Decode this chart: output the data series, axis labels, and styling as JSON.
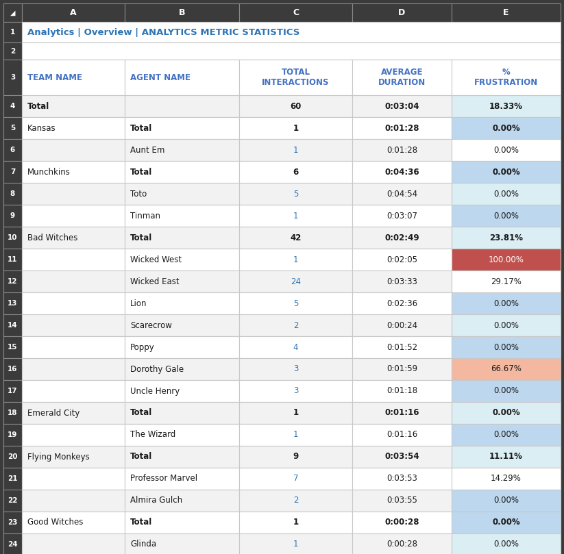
{
  "title": "Analytics | Overview | ANALYTICS METRIC STATISTICS",
  "title_color": "#2E75B6",
  "col_header_row": [
    "TEAM NAME",
    "AGENT NAME",
    "TOTAL\nINTERACTIONS",
    "AVERAGE\nDURATION",
    "%\nFRUSTRATION"
  ],
  "rows": [
    {
      "row_num": 4,
      "team": "Total",
      "agent": "",
      "interactions": "60",
      "duration": "0:03:04",
      "frustration": "18.33%",
      "bold_team": true,
      "bold_agent": false,
      "link_interactions": false,
      "bg_frustration": "#DAEEF3",
      "bg_row": "#F2F2F2"
    },
    {
      "row_num": 5,
      "team": "Kansas",
      "agent": "Total",
      "interactions": "1",
      "duration": "0:01:28",
      "frustration": "0.00%",
      "bold_team": false,
      "bold_agent": true,
      "link_interactions": false,
      "bg_frustration": "#BDD7EE",
      "bg_row": "#FFFFFF"
    },
    {
      "row_num": 6,
      "team": "",
      "agent": "Aunt Em",
      "interactions": "1",
      "duration": "0:01:28",
      "frustration": "0.00%",
      "bold_team": false,
      "bold_agent": false,
      "link_interactions": true,
      "bg_frustration": "#FFFFFF",
      "bg_row": "#F2F2F2"
    },
    {
      "row_num": 7,
      "team": "Munchkins",
      "agent": "Total",
      "interactions": "6",
      "duration": "0:04:36",
      "frustration": "0.00%",
      "bold_team": false,
      "bold_agent": true,
      "link_interactions": false,
      "bg_frustration": "#BDD7EE",
      "bg_row": "#FFFFFF"
    },
    {
      "row_num": 8,
      "team": "",
      "agent": "Toto",
      "interactions": "5",
      "duration": "0:04:54",
      "frustration": "0.00%",
      "bold_team": false,
      "bold_agent": false,
      "link_interactions": true,
      "bg_frustration": "#DAEEF3",
      "bg_row": "#F2F2F2"
    },
    {
      "row_num": 9,
      "team": "",
      "agent": "Tinman",
      "interactions": "1",
      "duration": "0:03:07",
      "frustration": "0.00%",
      "bold_team": false,
      "bold_agent": false,
      "link_interactions": true,
      "bg_frustration": "#BDD7EE",
      "bg_row": "#FFFFFF"
    },
    {
      "row_num": 10,
      "team": "Bad Witches",
      "agent": "Total",
      "interactions": "42",
      "duration": "0:02:49",
      "frustration": "23.81%",
      "bold_team": false,
      "bold_agent": true,
      "link_interactions": false,
      "bg_frustration": "#DAEEF3",
      "bg_row": "#F2F2F2"
    },
    {
      "row_num": 11,
      "team": "",
      "agent": "Wicked West",
      "interactions": "1",
      "duration": "0:02:05",
      "frustration": "100.00%",
      "bold_team": false,
      "bold_agent": false,
      "link_interactions": true,
      "bg_frustration": "#C0504D",
      "bg_row": "#FFFFFF"
    },
    {
      "row_num": 12,
      "team": "",
      "agent": "Wicked East",
      "interactions": "24",
      "duration": "0:03:33",
      "frustration": "29.17%",
      "bold_team": false,
      "bold_agent": false,
      "link_interactions": true,
      "bg_frustration": "#FFFFFF",
      "bg_row": "#F2F2F2"
    },
    {
      "row_num": 13,
      "team": "",
      "agent": "Lion",
      "interactions": "5",
      "duration": "0:02:36",
      "frustration": "0.00%",
      "bold_team": false,
      "bold_agent": false,
      "link_interactions": true,
      "bg_frustration": "#BDD7EE",
      "bg_row": "#FFFFFF"
    },
    {
      "row_num": 14,
      "team": "",
      "agent": "Scarecrow",
      "interactions": "2",
      "duration": "0:00:24",
      "frustration": "0.00%",
      "bold_team": false,
      "bold_agent": false,
      "link_interactions": true,
      "bg_frustration": "#DAEEF3",
      "bg_row": "#F2F2F2"
    },
    {
      "row_num": 15,
      "team": "",
      "agent": "Poppy",
      "interactions": "4",
      "duration": "0:01:52",
      "frustration": "0.00%",
      "bold_team": false,
      "bold_agent": false,
      "link_interactions": true,
      "bg_frustration": "#BDD7EE",
      "bg_row": "#FFFFFF"
    },
    {
      "row_num": 16,
      "team": "",
      "agent": "Dorothy Gale",
      "interactions": "3",
      "duration": "0:01:59",
      "frustration": "66.67%",
      "bold_team": false,
      "bold_agent": false,
      "link_interactions": true,
      "bg_frustration": "#F4B8A0",
      "bg_row": "#F2F2F2"
    },
    {
      "row_num": 17,
      "team": "",
      "agent": "Uncle Henry",
      "interactions": "3",
      "duration": "0:01:18",
      "frustration": "0.00%",
      "bold_team": false,
      "bold_agent": false,
      "link_interactions": true,
      "bg_frustration": "#BDD7EE",
      "bg_row": "#FFFFFF"
    },
    {
      "row_num": 18,
      "team": "Emerald City",
      "agent": "Total",
      "interactions": "1",
      "duration": "0:01:16",
      "frustration": "0.00%",
      "bold_team": false,
      "bold_agent": true,
      "link_interactions": false,
      "bg_frustration": "#DAEEF3",
      "bg_row": "#F2F2F2"
    },
    {
      "row_num": 19,
      "team": "",
      "agent": "The Wizard",
      "interactions": "1",
      "duration": "0:01:16",
      "frustration": "0.00%",
      "bold_team": false,
      "bold_agent": false,
      "link_interactions": true,
      "bg_frustration": "#BDD7EE",
      "bg_row": "#FFFFFF"
    },
    {
      "row_num": 20,
      "team": "Flying Monkeys",
      "agent": "Total",
      "interactions": "9",
      "duration": "0:03:54",
      "frustration": "11.11%",
      "bold_team": false,
      "bold_agent": true,
      "link_interactions": false,
      "bg_frustration": "#DAEEF3",
      "bg_row": "#F2F2F2"
    },
    {
      "row_num": 21,
      "team": "",
      "agent": "Professor Marvel",
      "interactions": "7",
      "duration": "0:03:53",
      "frustration": "14.29%",
      "bold_team": false,
      "bold_agent": false,
      "link_interactions": true,
      "bg_frustration": "#FFFFFF",
      "bg_row": "#FFFFFF"
    },
    {
      "row_num": 22,
      "team": "",
      "agent": "Almira Gulch",
      "interactions": "2",
      "duration": "0:03:55",
      "frustration": "0.00%",
      "bold_team": false,
      "bold_agent": false,
      "link_interactions": true,
      "bg_frustration": "#BDD7EE",
      "bg_row": "#F2F2F2"
    },
    {
      "row_num": 23,
      "team": "Good Witches",
      "agent": "Total",
      "interactions": "1",
      "duration": "0:00:28",
      "frustration": "0.00%",
      "bold_team": false,
      "bold_agent": true,
      "link_interactions": false,
      "bg_frustration": "#BDD7EE",
      "bg_row": "#FFFFFF"
    },
    {
      "row_num": 24,
      "team": "",
      "agent": "Glinda",
      "interactions": "1",
      "duration": "0:00:28",
      "frustration": "0.00%",
      "bold_team": false,
      "bold_agent": false,
      "link_interactions": true,
      "bg_frustration": "#DAEEF3",
      "bg_row": "#F2F2F2"
    }
  ],
  "dark_bg": "#3B3B3B",
  "link_color": "#2E75B6",
  "border_color": "#888888",
  "cell_border_color": "#C8C8C8",
  "header_text_color": "#4472C4"
}
